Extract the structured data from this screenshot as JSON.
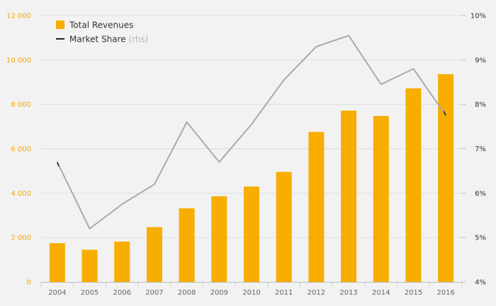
{
  "chart_data": {
    "type": "bar",
    "categories": [
      "2004",
      "2005",
      "2006",
      "2007",
      "2008",
      "2009",
      "2010",
      "2011",
      "2012",
      "2013",
      "2014",
      "2015",
      "2016"
    ],
    "series": [
      {
        "name": "Total Revenues",
        "type": "bar",
        "axis": "left",
        "color": "#f7ae00",
        "values": [
          1750,
          1450,
          1820,
          2470,
          3320,
          3860,
          4300,
          4960,
          6760,
          7720,
          7480,
          8720,
          9360
        ]
      },
      {
        "name": "Market Share",
        "suffix": "(rhs)",
        "type": "line",
        "axis": "right",
        "color": "#aaaaaa",
        "legend_color": "#222222",
        "values": [
          6.7,
          5.2,
          5.75,
          6.2,
          7.6,
          6.7,
          7.55,
          8.55,
          9.3,
          9.55,
          8.45,
          8.8,
          7.75
        ]
      }
    ],
    "y_left": {
      "ylim": [
        0,
        12000
      ],
      "ticks": [
        0,
        2000,
        4000,
        6000,
        8000,
        10000,
        12000
      ],
      "tick_labels": [
        "0",
        "2 000",
        "4 000",
        "6 000",
        "8 000",
        "10 000",
        "12 000"
      ],
      "color": "#f7a800"
    },
    "y_right": {
      "ylim": [
        4,
        10
      ],
      "ticks": [
        4,
        5,
        6,
        7,
        8,
        9,
        10
      ],
      "tick_labels": [
        "4%",
        "5%",
        "6%",
        "7%",
        "8%",
        "9%",
        "10%"
      ]
    },
    "grid": true,
    "legend_position": "top-left"
  }
}
